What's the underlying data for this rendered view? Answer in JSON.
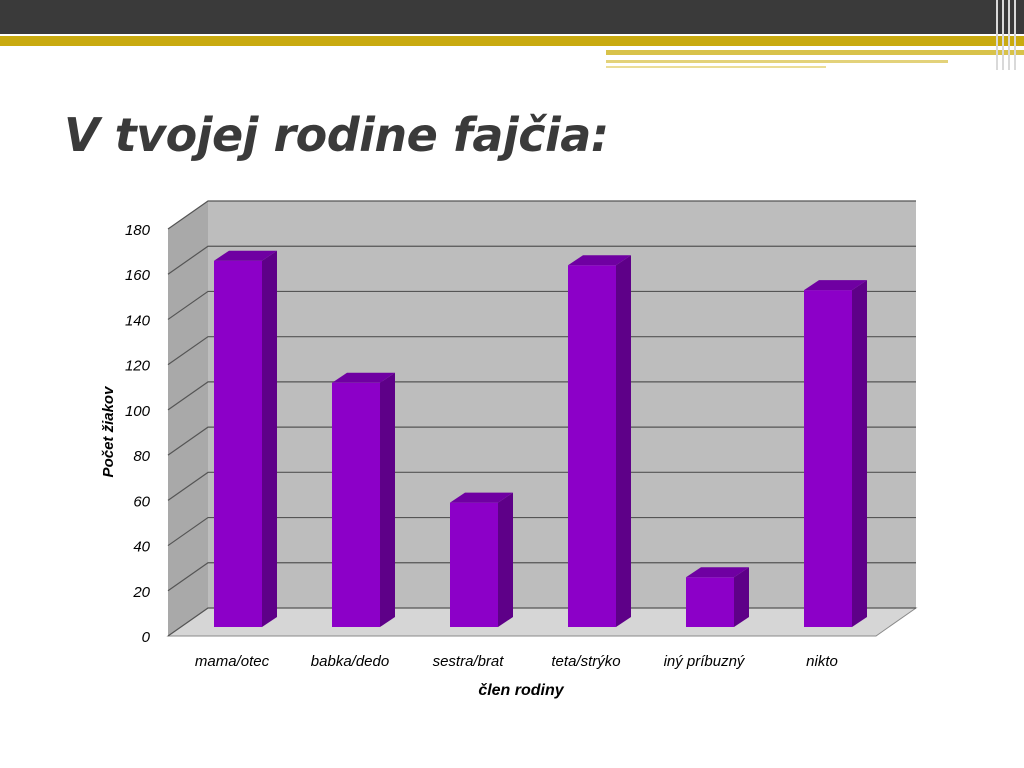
{
  "slide": {
    "title": "V tvojej rodine fajčia:"
  },
  "chart_data": {
    "type": "bar",
    "categories": [
      "mama/otec",
      "babka/dedo",
      "sestra/brat",
      "teta/strýko",
      "iný príbuzný",
      "nikto"
    ],
    "series": [
      {
        "values": [
          162,
          108,
          55,
          160,
          22,
          149
        ]
      }
    ],
    "xlabel": "člen rodiny",
    "ylabel": "Počet žiakov",
    "ylim": [
      0,
      180
    ],
    "yticks": [
      0,
      20,
      40,
      60,
      80,
      100,
      120,
      140,
      160,
      180
    ],
    "grid": true,
    "legend": "none",
    "bar_color": "#8c00c8",
    "bar_side_color": "#5e0088",
    "bar_top_color": "#6f00a2",
    "wall_color": "#bdbdbd",
    "grid_color": "#555555"
  }
}
